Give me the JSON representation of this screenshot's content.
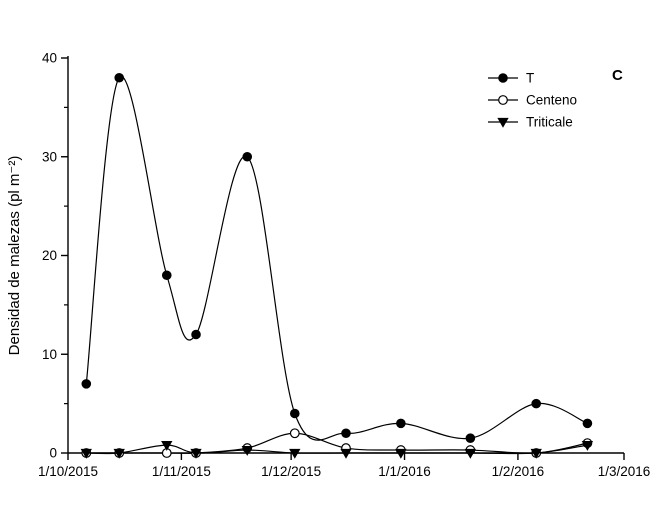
{
  "panel_label": "C",
  "chart_data": {
    "type": "line",
    "title": "",
    "xlabel": "",
    "ylabel": "Densidad de malezas (pl m⁻²)",
    "ylim": [
      0,
      40
    ],
    "y_major_ticks": [
      0,
      10,
      20,
      30,
      40
    ],
    "y_minor_ticks": [
      5,
      15,
      25,
      35
    ],
    "x_tick_labels": [
      "1/10/2015",
      "1/11/2015",
      "1/12/2015",
      "1/1/2016",
      "1/2/2016",
      "1/3/2016"
    ],
    "x_tick_days": [
      0,
      31,
      61,
      92,
      123,
      152
    ],
    "x_range_days": [
      0,
      152
    ],
    "x_days": [
      5,
      14,
      27,
      35,
      49,
      62,
      76,
      91,
      110,
      128,
      142
    ],
    "series": [
      {
        "name": "T",
        "marker": "circle-filled",
        "values": [
          7,
          38,
          18,
          12,
          30,
          4,
          2,
          3,
          1.5,
          5,
          3
        ]
      },
      {
        "name": "Centeno",
        "marker": "circle-open",
        "values": [
          0,
          0,
          0,
          0,
          0.5,
          2,
          0.5,
          0.3,
          0.3,
          0,
          1
        ]
      },
      {
        "name": "Triticale",
        "marker": "triangle-down-filled",
        "values": [
          0,
          0,
          0.8,
          0,
          0.3,
          0,
          0,
          0,
          0,
          0,
          0.8
        ]
      }
    ],
    "legend_position": "top-right",
    "line_color": "#000000",
    "marker_fill": "#000000",
    "open_marker_fill": "#ffffff",
    "background": "#ffffff",
    "grid": false
  }
}
